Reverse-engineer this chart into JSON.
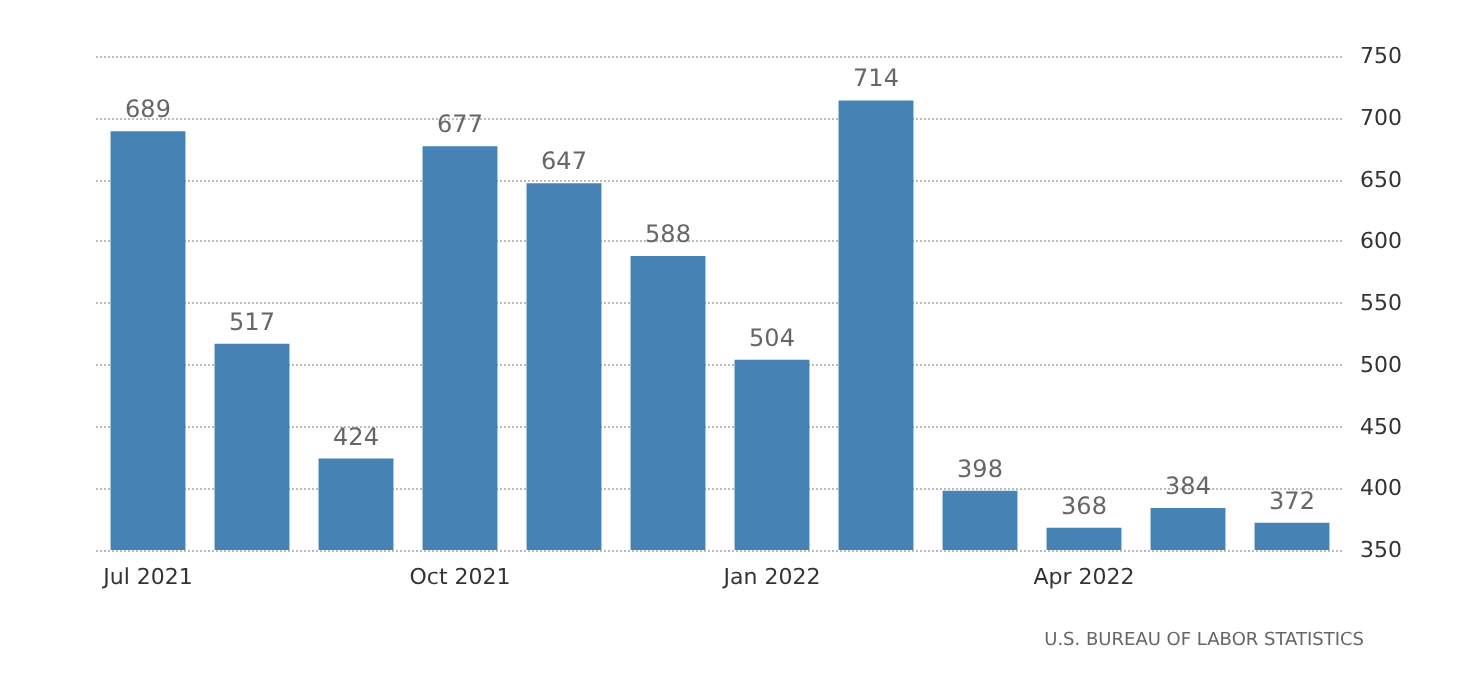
{
  "chart_data": {
    "type": "bar",
    "categories": [
      "Jul 2021",
      null,
      null,
      "Oct 2021",
      null,
      null,
      "Jan 2022",
      null,
      null,
      "Apr 2022",
      null,
      null
    ],
    "values": [
      689,
      517,
      424,
      677,
      647,
      588,
      504,
      714,
      398,
      368,
      384,
      372
    ],
    "color": "#4682b4",
    "data_labels": true,
    "ylim": [
      350,
      750
    ],
    "yticks": [
      350,
      400,
      450,
      500,
      550,
      600,
      650,
      700,
      750
    ],
    "grid": "y",
    "annotations": [
      "U.S. BUREAU OF LABOR STATISTICS"
    ]
  }
}
